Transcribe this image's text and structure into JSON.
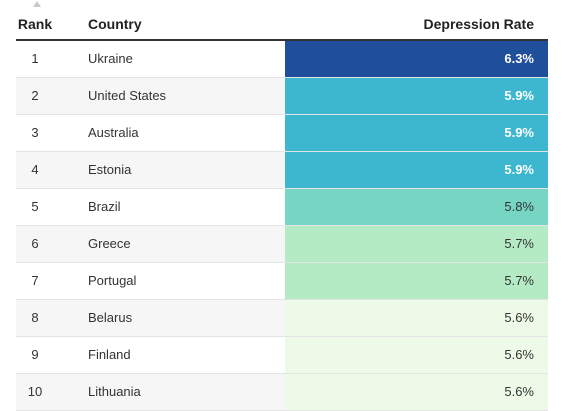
{
  "table": {
    "headers": {
      "rank": "Rank",
      "country": "Country",
      "rate": "Depression Rate"
    },
    "sort_indicator": "sort-ascending-icon",
    "rows": [
      {
        "rank": "1",
        "country": "Ukraine",
        "rate": "6.3%",
        "color": "#1f4e9a",
        "text_light": true
      },
      {
        "rank": "2",
        "country": "United States",
        "rate": "5.9%",
        "color": "#3db7cf",
        "text_light": true
      },
      {
        "rank": "3",
        "country": "Australia",
        "rate": "5.9%",
        "color": "#3db7cf",
        "text_light": true
      },
      {
        "rank": "4",
        "country": "Estonia",
        "rate": "5.9%",
        "color": "#3db7cf",
        "text_light": true
      },
      {
        "rank": "5",
        "country": "Brazil",
        "rate": "5.8%",
        "color": "#76d6c3",
        "text_light": false
      },
      {
        "rank": "6",
        "country": "Greece",
        "rate": "5.7%",
        "color": "#b4ebc4",
        "text_light": false
      },
      {
        "rank": "7",
        "country": "Portugal",
        "rate": "5.7%",
        "color": "#b4ebc4",
        "text_light": false
      },
      {
        "rank": "8",
        "country": "Belarus",
        "rate": "5.6%",
        "color": "#eefae8",
        "text_light": false
      },
      {
        "rank": "9",
        "country": "Finland",
        "rate": "5.6%",
        "color": "#eefae8",
        "text_light": false
      },
      {
        "rank": "10",
        "country": "Lithuania",
        "rate": "5.6%",
        "color": "#eefae8",
        "text_light": false
      }
    ]
  }
}
